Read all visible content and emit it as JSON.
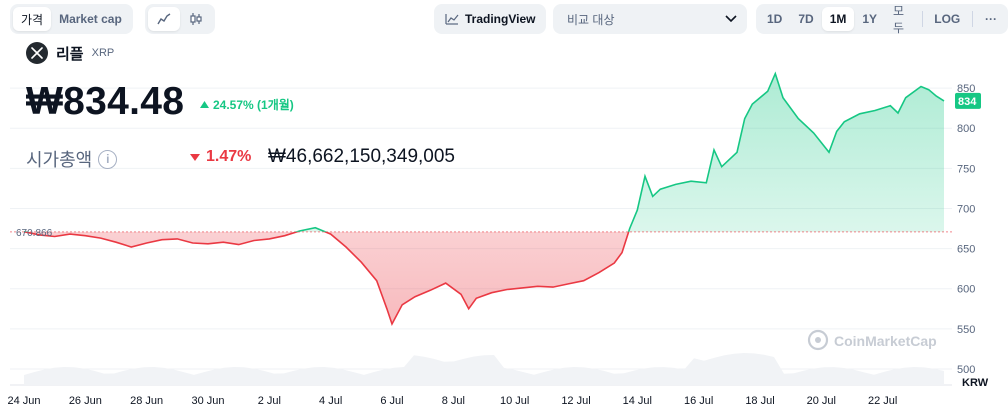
{
  "toolbar": {
    "tabs": [
      {
        "label": "가격",
        "active": true
      },
      {
        "label": "Market cap",
        "active": false
      }
    ],
    "chart_style_icons": [
      "line-chart-icon",
      "candlestick-icon"
    ],
    "tradingview_label": "TradingView",
    "compare_placeholder": "비교 대상",
    "ranges": [
      "1D",
      "7D",
      "1M",
      "1Y",
      "모두"
    ],
    "active_range": "1M",
    "log_label": "LOG",
    "more_label": "···"
  },
  "coin": {
    "name": "리플",
    "symbol": "XRP",
    "price": "₩834.48",
    "change": "24.57% (1개월)",
    "change_direction": "up",
    "market_cap_label": "시가총액",
    "market_cap_change": "1.47%",
    "market_cap_change_direction": "down",
    "market_cap_value": "₩46,662,150,349,005"
  },
  "colors": {
    "up": "#16c784",
    "down": "#ea3943",
    "text": "#0d1421",
    "muted": "#58667e"
  },
  "chart_data": {
    "type": "line",
    "currency_unit": "KRW",
    "open_value": 670.866,
    "open_label": "670.866",
    "current_value": 834,
    "current_label": "834",
    "y_ticks": [
      500,
      550,
      600,
      650,
      700,
      750,
      800,
      850
    ],
    "ylim": [
      480,
      880
    ],
    "x_ticks": [
      "24 Jun",
      "26 Jun",
      "28 Jun",
      "30 Jun",
      "2 Jul",
      "4 Jul",
      "6 Jul",
      "8 Jul",
      "10 Jul",
      "12 Jul",
      "14 Jul",
      "16 Jul",
      "18 Jul",
      "20 Jul",
      "22 Jul"
    ],
    "x_start": "2024-06-24",
    "points": [
      [
        "2024-06-24T00:00",
        671
      ],
      [
        "2024-06-24T12:00",
        667
      ],
      [
        "2024-06-25T00:00",
        665
      ],
      [
        "2024-06-25T12:00",
        668
      ],
      [
        "2024-06-26T00:00",
        666
      ],
      [
        "2024-06-26T12:00",
        663
      ],
      [
        "2024-06-27T00:00",
        658
      ],
      [
        "2024-06-27T12:00",
        652
      ],
      [
        "2024-06-28T00:00",
        657
      ],
      [
        "2024-06-28T12:00",
        661
      ],
      [
        "2024-06-29T00:00",
        662
      ],
      [
        "2024-06-29T12:00",
        657
      ],
      [
        "2024-06-30T00:00",
        656
      ],
      [
        "2024-06-30T12:00",
        658
      ],
      [
        "2024-07-01T00:00",
        655
      ],
      [
        "2024-07-01T12:00",
        660
      ],
      [
        "2024-07-02T00:00",
        662
      ],
      [
        "2024-07-02T12:00",
        666
      ],
      [
        "2024-07-03T00:00",
        672
      ],
      [
        "2024-07-03T12:00",
        676
      ],
      [
        "2024-07-04T00:00",
        668
      ],
      [
        "2024-07-04T12:00",
        652
      ],
      [
        "2024-07-05T00:00",
        633
      ],
      [
        "2024-07-05T12:00",
        610
      ],
      [
        "2024-07-05T20:00",
        575
      ],
      [
        "2024-07-06T00:00",
        556
      ],
      [
        "2024-07-06T08:00",
        580
      ],
      [
        "2024-07-06T18:00",
        590
      ],
      [
        "2024-07-07T06:00",
        598
      ],
      [
        "2024-07-07T18:00",
        607
      ],
      [
        "2024-07-08T06:00",
        593
      ],
      [
        "2024-07-08T12:00",
        575
      ],
      [
        "2024-07-08T18:00",
        588
      ],
      [
        "2024-07-09T06:00",
        595
      ],
      [
        "2024-07-09T18:00",
        599
      ],
      [
        "2024-07-10T06:00",
        601
      ],
      [
        "2024-07-10T18:00",
        603
      ],
      [
        "2024-07-11T06:00",
        602
      ],
      [
        "2024-07-11T18:00",
        606
      ],
      [
        "2024-07-12T06:00",
        610
      ],
      [
        "2024-07-12T18:00",
        620
      ],
      [
        "2024-07-13T06:00",
        632
      ],
      [
        "2024-07-13T12:00",
        645
      ],
      [
        "2024-07-13T18:00",
        675
      ],
      [
        "2024-07-14T00:00",
        698
      ],
      [
        "2024-07-14T06:00",
        740
      ],
      [
        "2024-07-14T12:00",
        715
      ],
      [
        "2024-07-14T18:00",
        724
      ],
      [
        "2024-07-15T06:00",
        730
      ],
      [
        "2024-07-15T18:00",
        734
      ],
      [
        "2024-07-16T06:00",
        732
      ],
      [
        "2024-07-16T12:00",
        773
      ],
      [
        "2024-07-16T18:00",
        752
      ],
      [
        "2024-07-17T06:00",
        770
      ],
      [
        "2024-07-17T12:00",
        812
      ],
      [
        "2024-07-17T18:00",
        830
      ],
      [
        "2024-07-18T06:00",
        846
      ],
      [
        "2024-07-18T12:00",
        868
      ],
      [
        "2024-07-18T18:00",
        838
      ],
      [
        "2024-07-19T06:00",
        812
      ],
      [
        "2024-07-19T18:00",
        794
      ],
      [
        "2024-07-20T06:00",
        770
      ],
      [
        "2024-07-20T12:00",
        796
      ],
      [
        "2024-07-20T18:00",
        808
      ],
      [
        "2024-07-21T06:00",
        818
      ],
      [
        "2024-07-21T18:00",
        822
      ],
      [
        "2024-07-22T06:00",
        828
      ],
      [
        "2024-07-22T12:00",
        819
      ],
      [
        "2024-07-22T18:00",
        838
      ],
      [
        "2024-07-23T06:00",
        852
      ],
      [
        "2024-07-23T12:00",
        848
      ],
      [
        "2024-07-23T18:00",
        840
      ],
      [
        "2024-07-24T00:00",
        834
      ]
    ],
    "grid": true,
    "watermark": "CoinMarketCap"
  }
}
